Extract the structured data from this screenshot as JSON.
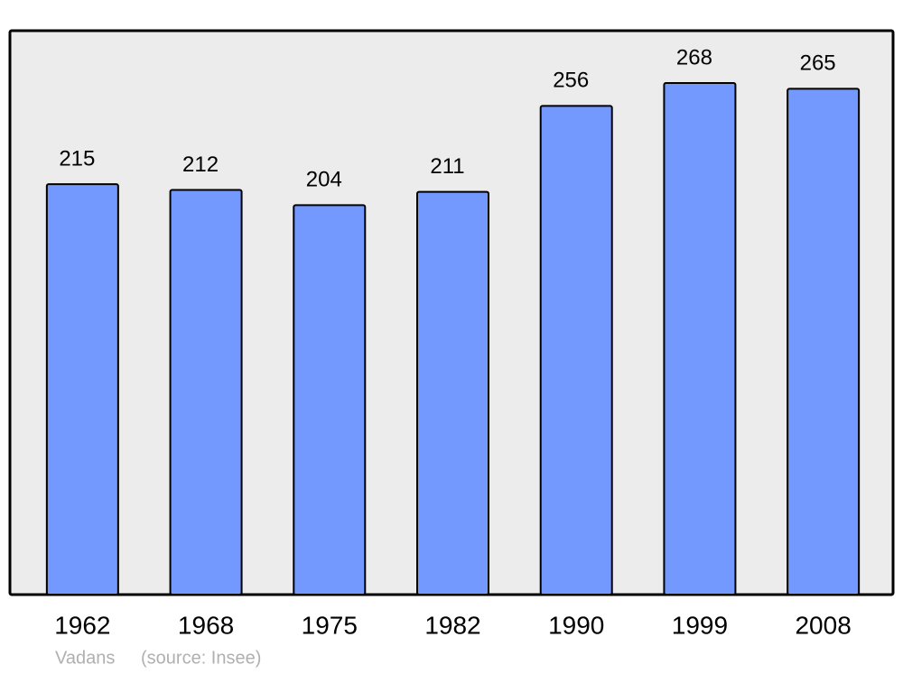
{
  "chart_data": {
    "type": "bar",
    "categories": [
      "1962",
      "1968",
      "1975",
      "1982",
      "1990",
      "1999",
      "2008"
    ],
    "values": [
      215,
      212,
      204,
      211,
      256,
      268,
      265
    ],
    "color": "#7399ff",
    "background": "#ececec",
    "commune": "Vadans",
    "source": "(source: Insee)"
  }
}
